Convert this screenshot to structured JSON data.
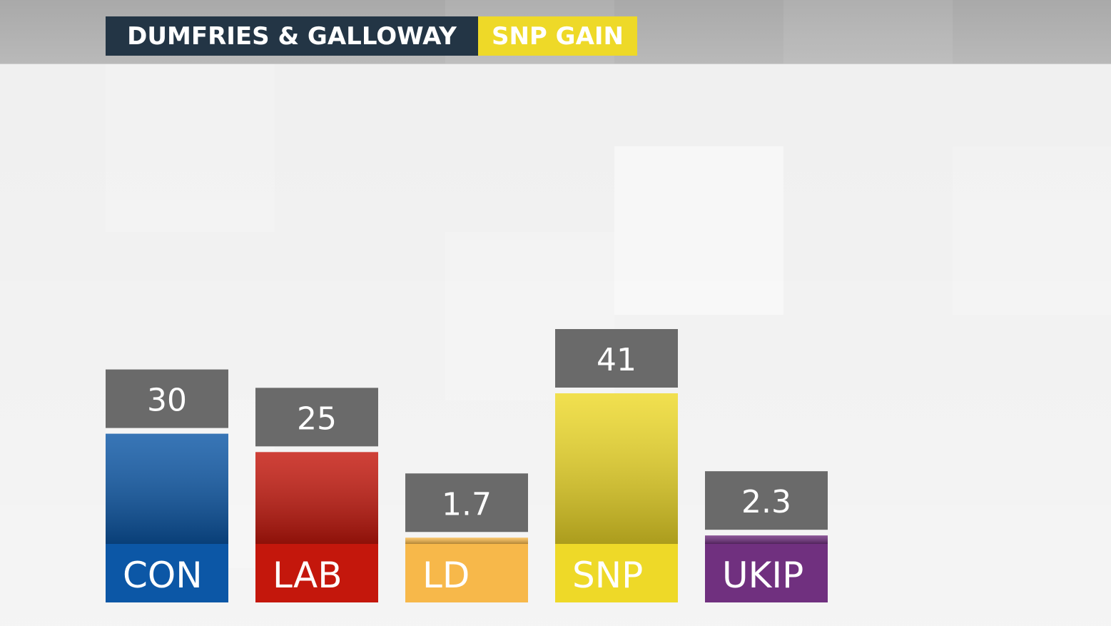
{
  "header": {
    "constituency": "DUMFRIES & GALLOWAY",
    "result": "SNP GAIN",
    "result_color": "#eed928",
    "title_bg_color": "#233545"
  },
  "chart_data": {
    "type": "bar",
    "title": "DUMFRIES & GALLOWAY",
    "subtitle": "SNP GAIN",
    "xlabel": "",
    "ylabel": "",
    "ylim": [
      0,
      41
    ],
    "grid": false,
    "legend": "none",
    "categories": [
      "CON",
      "LAB",
      "LD",
      "SNP",
      "UKIP"
    ],
    "values": [
      30,
      25,
      1.7,
      41,
      2.3
    ],
    "value_labels": [
      "30",
      "25",
      "1.7",
      "41",
      "2.3"
    ],
    "colors": [
      "#0c57a6",
      "#c4170c",
      "#f7b84a",
      "#eed928",
      "#70307f"
    ],
    "label_box_color": "#6a6a6a"
  }
}
